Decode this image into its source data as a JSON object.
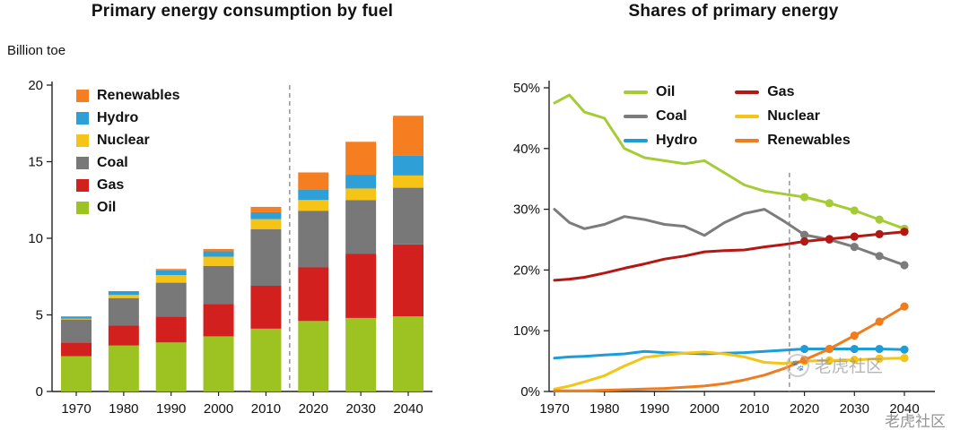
{
  "watermark": {
    "badge_text": "老虎社区",
    "footer_text": "老虎社区"
  },
  "chart_data": [
    {
      "type": "bar",
      "stacked": true,
      "title": "Primary energy consumption by fuel",
      "ylabel": "Billion toe",
      "xlabel": "",
      "categories": [
        "1970",
        "1980",
        "1990",
        "2000",
        "2010",
        "2020",
        "2030",
        "2040"
      ],
      "ylim": [
        0,
        20
      ],
      "yticks": [
        0,
        5,
        10,
        15,
        20
      ],
      "forecast_divider_between": [
        "2010",
        "2020"
      ],
      "legend_order": [
        "Renewables",
        "Hydro",
        "Nuclear",
        "Coal",
        "Gas",
        "Oil"
      ],
      "series": [
        {
          "name": "Oil",
          "color": "#9cc321",
          "values": [
            2.3,
            3.0,
            3.2,
            3.6,
            4.1,
            4.6,
            4.8,
            4.9
          ]
        },
        {
          "name": "Gas",
          "color": "#d2201f",
          "values": [
            0.9,
            1.3,
            1.7,
            2.1,
            2.8,
            3.5,
            4.2,
            4.7
          ]
        },
        {
          "name": "Coal",
          "color": "#787878",
          "values": [
            1.5,
            1.8,
            2.2,
            2.5,
            3.7,
            3.7,
            3.5,
            3.7
          ]
        },
        {
          "name": "Nuclear",
          "color": "#f6c416",
          "values": [
            0.05,
            0.2,
            0.5,
            0.6,
            0.65,
            0.7,
            0.75,
            0.8
          ]
        },
        {
          "name": "Hydro",
          "color": "#2f9fd8",
          "values": [
            0.15,
            0.25,
            0.3,
            0.35,
            0.45,
            0.7,
            0.9,
            1.3
          ]
        },
        {
          "name": "Renewables",
          "color": "#f57e20",
          "values": [
            0.0,
            0.0,
            0.1,
            0.15,
            0.35,
            1.1,
            2.15,
            2.6
          ]
        }
      ]
    },
    {
      "type": "line",
      "title": "Shares of primary energy",
      "xlabel": "",
      "ylabel": "",
      "ylim": [
        0,
        50
      ],
      "ytick_labels": [
        "0%",
        "10%",
        "20%",
        "30%",
        "40%",
        "50%"
      ],
      "yticks": [
        0,
        10,
        20,
        30,
        40,
        50
      ],
      "xticks": [
        1970,
        1980,
        1990,
        2000,
        2010,
        2020,
        2030,
        2040
      ],
      "forecast_start_year": 2017,
      "marker_years": [
        2020,
        2025,
        2030,
        2035,
        2040
      ],
      "legend_columns": [
        [
          "Oil",
          "Coal",
          "Hydro"
        ],
        [
          "Gas",
          "Nuclear",
          "Renewables"
        ]
      ],
      "x": [
        1970,
        1973,
        1976,
        1980,
        1984,
        1988,
        1992,
        1996,
        2000,
        2004,
        2008,
        2012,
        2016,
        2020,
        2025,
        2030,
        2035,
        2040
      ],
      "series": [
        {
          "name": "Oil",
          "color": "#a6cc35",
          "values": [
            47.5,
            48.8,
            46.0,
            45.0,
            40.0,
            38.5,
            38.0,
            37.5,
            38.0,
            36.0,
            34.0,
            33.0,
            32.5,
            32.0,
            31.0,
            29.8,
            28.3,
            26.8
          ]
        },
        {
          "name": "Coal",
          "color": "#7c7c7c",
          "values": [
            30.0,
            27.8,
            26.8,
            27.5,
            28.8,
            28.3,
            27.5,
            27.2,
            25.7,
            27.8,
            29.3,
            30.0,
            28.0,
            25.8,
            25.0,
            23.8,
            22.3,
            20.8
          ]
        },
        {
          "name": "Hydro",
          "color": "#1e9cd7",
          "values": [
            5.5,
            5.7,
            5.8,
            6.0,
            6.2,
            6.6,
            6.4,
            6.3,
            6.2,
            6.3,
            6.4,
            6.6,
            6.8,
            7.0,
            7.0,
            7.0,
            7.0,
            6.9
          ]
        },
        {
          "name": "Gas",
          "color": "#b41815",
          "values": [
            18.3,
            18.5,
            18.8,
            19.5,
            20.3,
            21.0,
            21.8,
            22.3,
            23.0,
            23.2,
            23.3,
            23.8,
            24.2,
            24.7,
            25.1,
            25.5,
            25.9,
            26.3
          ]
        },
        {
          "name": "Nuclear",
          "color": "#f4c417",
          "values": [
            0.4,
            0.9,
            1.6,
            2.6,
            4.2,
            5.6,
            6.0,
            6.3,
            6.5,
            6.2,
            5.7,
            4.8,
            4.6,
            5.0,
            5.1,
            5.2,
            5.4,
            5.5
          ]
        },
        {
          "name": "Renewables",
          "color": "#ef7c1d",
          "values": [
            0.1,
            0.1,
            0.1,
            0.2,
            0.3,
            0.4,
            0.5,
            0.7,
            0.9,
            1.3,
            1.9,
            2.7,
            3.8,
            5.2,
            7.0,
            9.2,
            11.5,
            14.0
          ]
        }
      ]
    }
  ]
}
